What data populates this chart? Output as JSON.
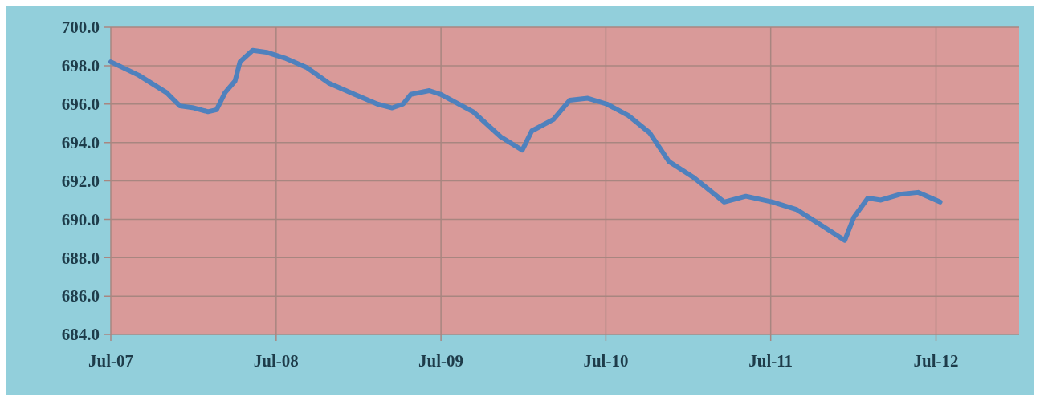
{
  "chart_data": {
    "type": "line",
    "x": [
      "2007-07",
      "2007-09",
      "2007-11",
      "2007-12",
      "2008-01",
      "2008-02",
      "2008-02-20",
      "2008-03-10",
      "2008-04",
      "2008-04-12",
      "2008-05-10",
      "2008-06-10",
      "2008-07-20",
      "2008-09-07",
      "2008-10-25",
      "2008-12-22",
      "2009-02-10",
      "2009-03-15",
      "2009-04-08",
      "2009-04-25",
      "2009-06-05",
      "2009-07-01",
      "2009-09-10",
      "2009-11-10",
      "2009-12-28",
      "2010-01-18",
      "2010-03-07",
      "2010-04-12",
      "2010-05-22",
      "2010-07-03",
      "2010-08-20",
      "2010-10-06",
      "2010-11-18",
      "2011-01-10",
      "2011-03-20",
      "2011-05-07",
      "2011-07-05",
      "2011-08-28",
      "2011-10-27",
      "2011-12-12",
      "2012-01-01",
      "2012-02-01",
      "2012-03-01",
      "2012-04-12",
      "2012-05-22",
      "2012-07-10"
    ],
    "series": [
      {
        "color": "#4f81bd",
        "values": [
          698.2,
          697.5,
          696.6,
          695.9,
          695.8,
          695.6,
          695.7,
          696.6,
          697.2,
          698.2,
          698.8,
          698.7,
          698.4,
          697.9,
          697.1,
          696.5,
          696.0,
          695.8,
          696.0,
          696.5,
          696.7,
          696.5,
          695.6,
          694.3,
          693.6,
          694.6,
          695.2,
          696.2,
          696.3,
          696.0,
          695.4,
          694.5,
          693.0,
          692.2,
          690.9,
          691.2,
          690.9,
          690.5,
          689.6,
          688.9,
          690.1,
          691.1,
          691.0,
          691.3,
          691.4,
          690.9
        ]
      }
    ],
    "xlim": [
      "2007-07",
      "2013-01"
    ],
    "xticks": [
      {
        "value": "2007-07",
        "label": "Jul-07"
      },
      {
        "value": "2008-07",
        "label": "Jul-08"
      },
      {
        "value": "2009-07",
        "label": "Jul-09"
      },
      {
        "value": "2010-07",
        "label": "Jul-10"
      },
      {
        "value": "2011-07",
        "label": "Jul-11"
      },
      {
        "value": "2012-07",
        "label": "Jul-12"
      }
    ],
    "ylim": [
      684,
      700
    ],
    "yticks": [
      {
        "value": 684,
        "label": "684.0"
      },
      {
        "value": 686,
        "label": "686.0"
      },
      {
        "value": 688,
        "label": "688.0"
      },
      {
        "value": 690,
        "label": "690.0"
      },
      {
        "value": 692,
        "label": "692.0"
      },
      {
        "value": 694,
        "label": "694.0"
      },
      {
        "value": 696,
        "label": "696.0"
      },
      {
        "value": 698,
        "label": "698.0"
      },
      {
        "value": 700,
        "label": "700.0"
      }
    ],
    "grid": true
  }
}
